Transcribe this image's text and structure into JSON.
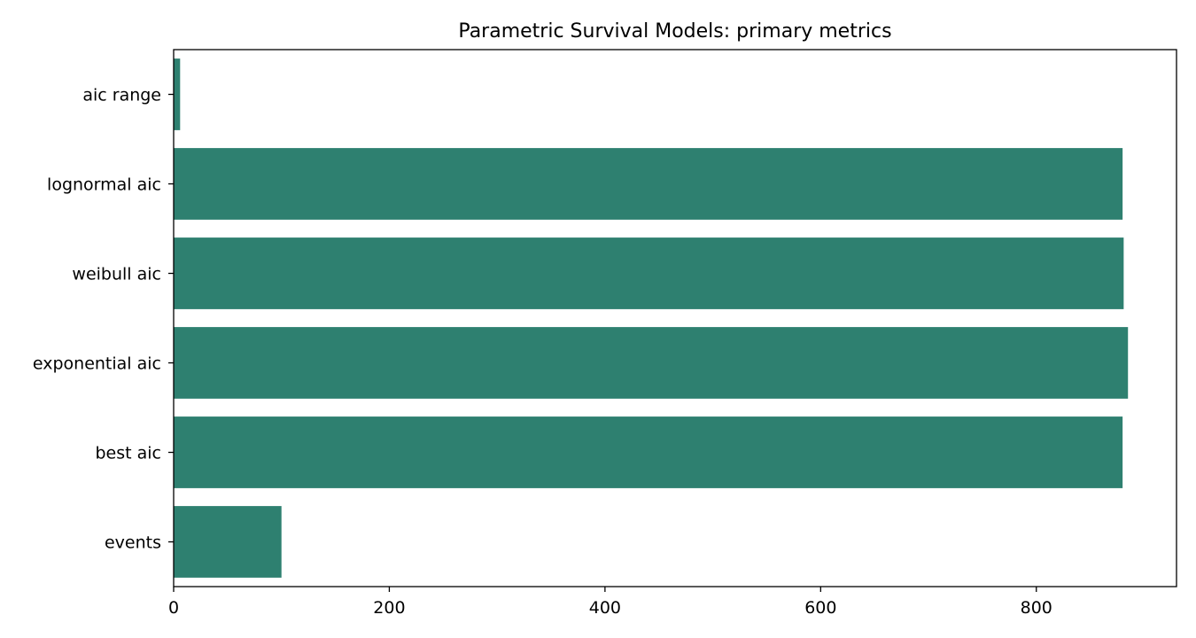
{
  "chart_data": {
    "type": "bar",
    "orientation": "horizontal",
    "title": "Parametric Survival Models: primary metrics",
    "xlabel": "",
    "ylabel": "",
    "categories": [
      "aic range",
      "lognormal aic",
      "weibull aic",
      "exponential aic",
      "best aic",
      "events"
    ],
    "values": [
      6,
      880,
      881,
      885,
      880,
      100
    ],
    "xlim": [
      0,
      930
    ],
    "xticks": [
      0,
      200,
      400,
      600,
      800
    ],
    "grid": false,
    "legend": "none",
    "bar_color": "#2e8070"
  }
}
